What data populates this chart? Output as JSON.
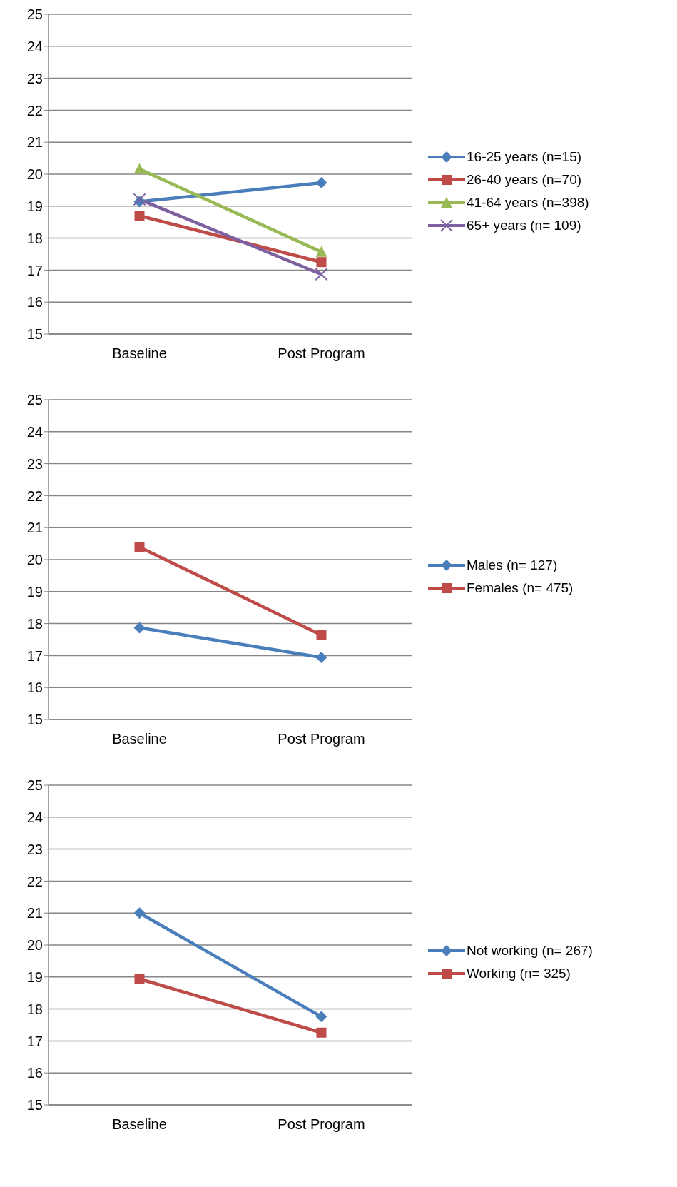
{
  "chart_data": [
    {
      "type": "line",
      "categories": [
        "Baseline",
        "Post Program"
      ],
      "ylim": [
        15,
        25
      ],
      "yticks": [
        15,
        16,
        17,
        18,
        19,
        20,
        21,
        22,
        23,
        24,
        25
      ],
      "grid": "y",
      "legend": "right",
      "series": [
        {
          "name": "16-25 years (n=15)",
          "color": "#4a7ebb",
          "marker": "diamond",
          "values": [
            19.14,
            19.73
          ]
        },
        {
          "name": "26-40 years (n=70)",
          "color": "#be4b48",
          "marker": "square",
          "values": [
            18.7,
            17.25
          ]
        },
        {
          "name": "41-64 years (n=398)",
          "color": "#98b954",
          "marker": "triangle",
          "values": [
            20.16,
            17.57
          ]
        },
        {
          "name": "65+ years (n= 109)",
          "color": "#7d60a0",
          "marker": "cross",
          "values": [
            19.21,
            16.87
          ]
        }
      ]
    },
    {
      "type": "line",
      "categories": [
        "Baseline",
        "Post Program"
      ],
      "ylim": [
        15,
        25
      ],
      "yticks": [
        15,
        16,
        17,
        18,
        19,
        20,
        21,
        22,
        23,
        24,
        25
      ],
      "grid": "y",
      "legend": "right",
      "series": [
        {
          "name": "Males (n= 127)",
          "color": "#4a7ebb",
          "marker": "diamond",
          "values": [
            17.87,
            16.94
          ]
        },
        {
          "name": "Females (n= 475)",
          "color": "#be4b48",
          "marker": "square",
          "values": [
            20.39,
            17.64
          ]
        }
      ]
    },
    {
      "type": "line",
      "categories": [
        "Baseline",
        "Post Program"
      ],
      "ylim": [
        15,
        25
      ],
      "yticks": [
        15,
        16,
        17,
        18,
        19,
        20,
        21,
        22,
        23,
        24,
        25
      ],
      "grid": "y",
      "legend": "right",
      "series": [
        {
          "name": "Not working (n= 267)",
          "color": "#4a7ebb",
          "marker": "diamond",
          "values": [
            21.0,
            17.76
          ]
        },
        {
          "name": "Working (n= 325)",
          "color": "#be4b48",
          "marker": "square",
          "values": [
            18.94,
            17.26
          ]
        }
      ]
    }
  ]
}
